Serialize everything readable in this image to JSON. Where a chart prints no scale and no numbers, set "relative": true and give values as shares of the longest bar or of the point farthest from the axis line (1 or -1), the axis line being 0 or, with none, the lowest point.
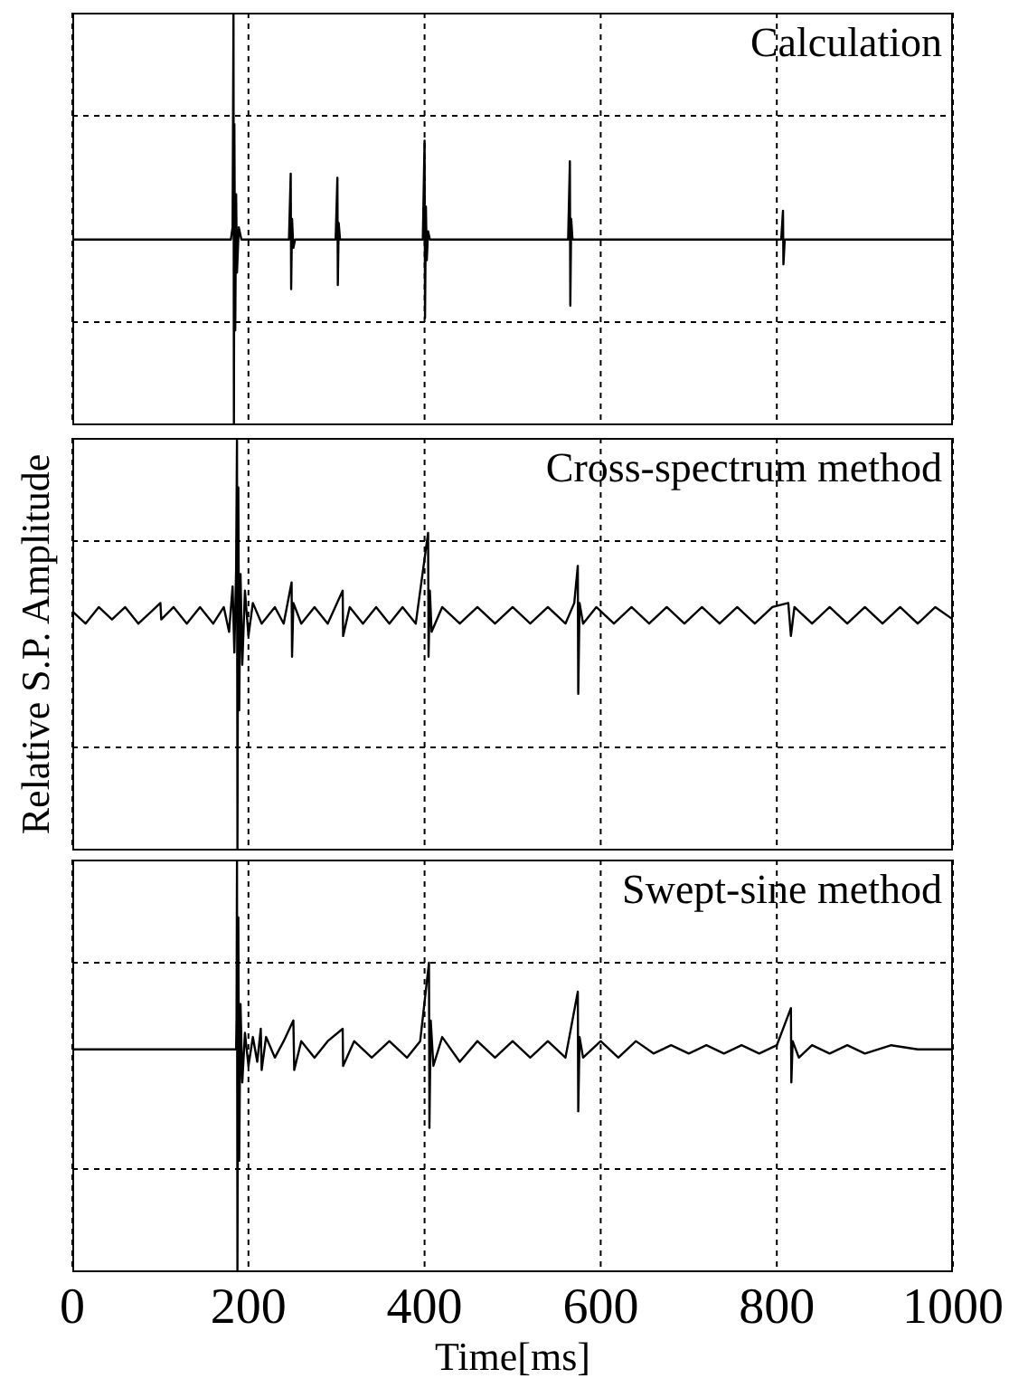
{
  "chart_data": [
    {
      "type": "line",
      "relative": true,
      "title": "Calculation",
      "xlim": [
        0,
        1000
      ],
      "xticks": [
        0,
        200,
        400,
        600,
        800,
        1000
      ],
      "grid": true,
      "tick_labels": false,
      "color": "#000000",
      "x": [
        0,
        180,
        182,
        183,
        183.5,
        184,
        185,
        186,
        187,
        189,
        192,
        246,
        248,
        248.5,
        249.5,
        251,
        253,
        299,
        301,
        301.5,
        302.5,
        304,
        398,
        400,
        400.5,
        401.5,
        402.5,
        404,
        406,
        563,
        565,
        565.5,
        566.5,
        568,
        805,
        807,
        807.5,
        809,
        1000
      ],
      "values": [
        0.45,
        0.45,
        0.48,
        1,
        0,
        0.73,
        0.23,
        0.56,
        0.37,
        0.48,
        0.45,
        0.45,
        0.61,
        0.33,
        0.5,
        0.43,
        0.45,
        0.45,
        0.6,
        0.34,
        0.49,
        0.45,
        0.45,
        0.69,
        0.26,
        0.53,
        0.4,
        0.47,
        0.45,
        0.45,
        0.64,
        0.29,
        0.5,
        0.45,
        0.45,
        0.52,
        0.39,
        0.45,
        0.45
      ]
    },
    {
      "type": "line",
      "relative": true,
      "title": "Cross-spectrum method",
      "ylabel": "Relative S.P. Amplitude",
      "xlim": [
        0,
        1000
      ],
      "xticks": [
        0,
        200,
        400,
        600,
        800,
        1000
      ],
      "grid": true,
      "tick_labels": false,
      "color": "#000000",
      "x": [
        0,
        15,
        30,
        45,
        60,
        75,
        90,
        100,
        101,
        115,
        130,
        145,
        160,
        172,
        178,
        182,
        184,
        186,
        187,
        187.5,
        188.5,
        189.5,
        191,
        193,
        196,
        200,
        205,
        215,
        230,
        240,
        249,
        249.5,
        251,
        260,
        275,
        290,
        307,
        307.5,
        315,
        330,
        345,
        360,
        375,
        390,
        404,
        404.5,
        406,
        408,
        420,
        440,
        460,
        480,
        500,
        520,
        540,
        560,
        570,
        574,
        574.5,
        576,
        580,
        595,
        615,
        635,
        655,
        675,
        695,
        715,
        735,
        755,
        775,
        795,
        813,
        816,
        820,
        840,
        860,
        880,
        900,
        920,
        940,
        960,
        980,
        1000
      ],
      "values": [
        0.58,
        0.55,
        0.59,
        0.56,
        0.59,
        0.55,
        0.58,
        0.6,
        0.56,
        0.59,
        0.55,
        0.59,
        0.55,
        0.59,
        0.53,
        0.64,
        0.48,
        0.68,
        1,
        0,
        0.88,
        0.34,
        0.67,
        0.45,
        0.63,
        0.52,
        0.6,
        0.55,
        0.59,
        0.55,
        0.65,
        0.47,
        0.6,
        0.55,
        0.59,
        0.55,
        0.63,
        0.52,
        0.59,
        0.55,
        0.59,
        0.55,
        0.59,
        0.55,
        0.77,
        0.47,
        0.63,
        0.53,
        0.59,
        0.55,
        0.59,
        0.55,
        0.59,
        0.55,
        0.59,
        0.55,
        0.6,
        0.69,
        0.38,
        0.6,
        0.55,
        0.59,
        0.55,
        0.59,
        0.55,
        0.59,
        0.55,
        0.59,
        0.55,
        0.59,
        0.55,
        0.59,
        0.6,
        0.52,
        0.59,
        0.55,
        0.59,
        0.55,
        0.59,
        0.55,
        0.59,
        0.55,
        0.59,
        0.56
      ]
    },
    {
      "type": "line",
      "relative": true,
      "title": "Swept-sine method",
      "xlabel": "Time[ms]",
      "xlim": [
        0,
        1000
      ],
      "xticks": [
        0,
        200,
        400,
        600,
        800,
        1000
      ],
      "grid": true,
      "tick_labels": "x",
      "color": "#000000",
      "x": [
        0,
        186,
        186.5,
        187,
        187.5,
        188.5,
        189.5,
        191,
        193,
        196,
        200,
        205,
        210,
        214,
        215,
        220,
        230,
        240,
        251,
        252,
        260,
        275,
        290,
        307,
        307.5,
        320,
        340,
        360,
        380,
        395,
        405,
        405.5,
        407,
        410,
        420,
        440,
        460,
        480,
        500,
        520,
        540,
        560,
        574,
        574.5,
        576,
        580,
        600,
        620,
        640,
        660,
        680,
        700,
        720,
        740,
        760,
        780,
        800,
        816,
        816.5,
        818,
        825,
        840,
        860,
        880,
        900,
        930,
        960,
        1000
      ],
      "values": [
        0.54,
        0.54,
        0.62,
        1,
        0,
        0.86,
        0.27,
        0.65,
        0.46,
        0.58,
        0.5,
        0.57,
        0.51,
        0.59,
        0.49,
        0.57,
        0.52,
        0.56,
        0.61,
        0.49,
        0.56,
        0.52,
        0.56,
        0.59,
        0.5,
        0.56,
        0.52,
        0.56,
        0.52,
        0.56,
        0.75,
        0.35,
        0.61,
        0.5,
        0.57,
        0.51,
        0.56,
        0.52,
        0.56,
        0.52,
        0.56,
        0.52,
        0.68,
        0.39,
        0.57,
        0.52,
        0.56,
        0.52,
        0.56,
        0.53,
        0.55,
        0.53,
        0.55,
        0.53,
        0.55,
        0.53,
        0.55,
        0.64,
        0.46,
        0.56,
        0.52,
        0.55,
        0.53,
        0.55,
        0.53,
        0.55,
        0.54,
        0.54
      ]
    }
  ]
}
